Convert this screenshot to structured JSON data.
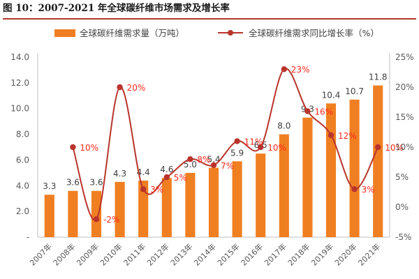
{
  "header": {
    "title": "图 10：2007-2021 年全球碳纤维市场需求及增长率"
  },
  "colors": {
    "bar": "#f07f22",
    "line": "#b9342c",
    "line_label": "#ff2a1a",
    "axis": "#bfbfbf",
    "header_rule": "#b23a2a"
  },
  "chart_data": {
    "type": "bar+line",
    "title": "2007-2021 年全球碳纤维市场需求及增长率",
    "categories": [
      "2007年",
      "2008年",
      "2009年",
      "2010年",
      "2011年",
      "2012年",
      "2013年",
      "2014年",
      "2015年",
      "2016年",
      "2017年",
      "2018年",
      "2019年",
      "2020年",
      "2021年"
    ],
    "series": [
      {
        "name": "全球碳纤维需求量（万吨）",
        "type": "bar",
        "axis": "left",
        "values": [
          3.3,
          3.6,
          3.6,
          4.3,
          4.4,
          4.6,
          5.0,
          5.4,
          5.9,
          6.5,
          8.0,
          9.3,
          10.4,
          10.7,
          11.8
        ],
        "labels": [
          "3.3",
          "3.6",
          "3.6",
          "4.3",
          "4.4",
          "4.6",
          "5.0",
          "5.4",
          "5.9",
          "6.5",
          "8.0",
          "9.3",
          "10.4",
          "10.7",
          "11.8"
        ]
      },
      {
        "name": "全球碳纤维需求同比增长率（%）",
        "type": "line",
        "axis": "right",
        "values": [
          null,
          10,
          -2,
          20,
          3,
          5,
          8,
          7,
          11,
          10,
          23,
          16,
          12,
          3,
          10
        ],
        "labels": [
          "",
          "10%",
          "-2%",
          "20%",
          "3%",
          "5%",
          "8%",
          "7%",
          "11%",
          "10%",
          "23%",
          "16%",
          "12%",
          "3%",
          "10%"
        ]
      }
    ],
    "y_left": {
      "range": [
        0,
        14
      ],
      "ticks": [
        0,
        2,
        4,
        6,
        8,
        10,
        12,
        14
      ],
      "tick_labels": [
        "-",
        "2.0",
        "4.0",
        "6.0",
        "8.0",
        "10.0",
        "12.0",
        "14.0"
      ]
    },
    "y_right": {
      "range": [
        -5,
        25
      ],
      "ticks": [
        -5,
        0,
        5,
        10,
        15,
        20,
        25
      ],
      "tick_labels": [
        "-5%",
        "0%",
        "5%",
        "10%",
        "15%",
        "20%",
        "25%"
      ]
    },
    "legend": {
      "position": "top",
      "bar_label": "全球碳纤维需求量（万吨）",
      "line_label": "全球碳纤维需求同比增长率（%）"
    },
    "grid": false
  }
}
